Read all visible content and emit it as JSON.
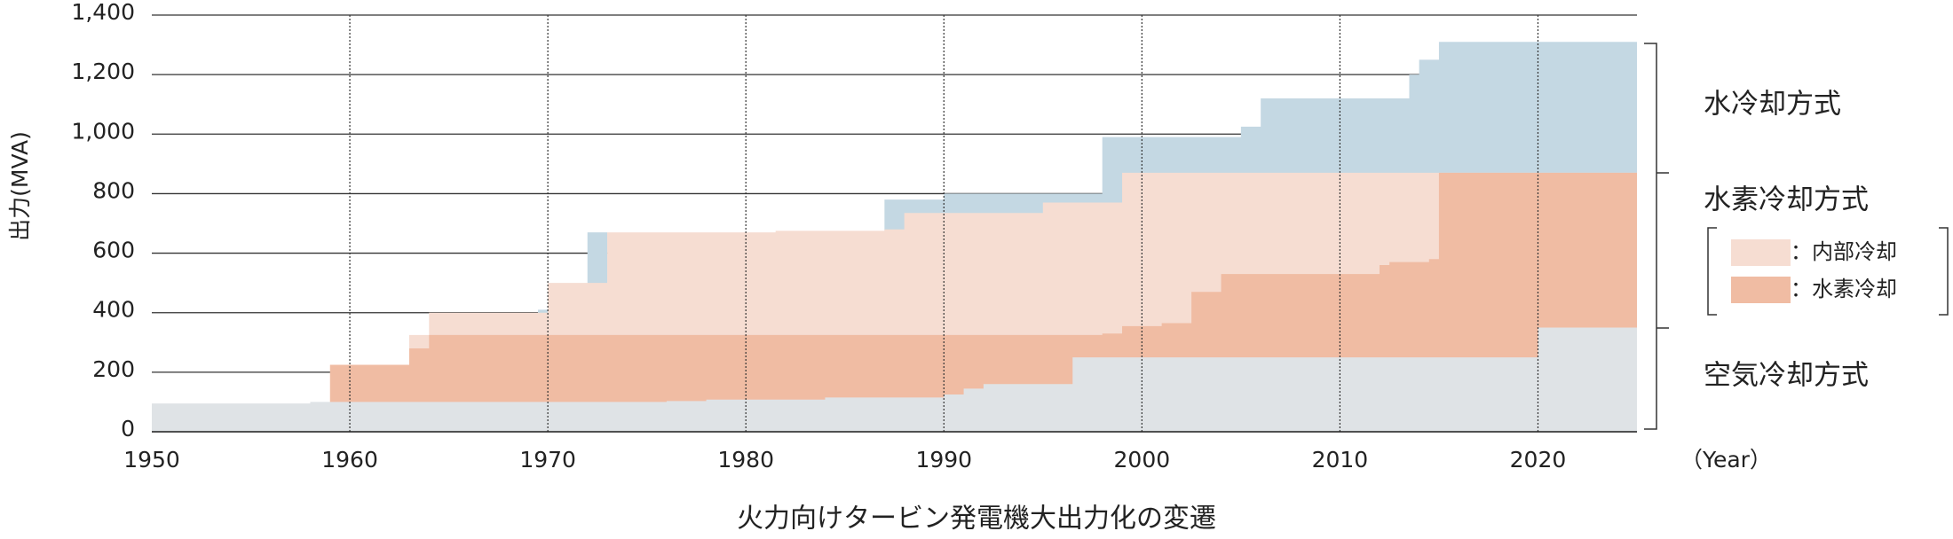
{
  "chart_data": {
    "type": "step-area",
    "title": "火力向けタービン発電機大出力化の変遷",
    "y_label": "出力(MVA)",
    "x_unit": "（Year）",
    "group_label": "水素冷却方式",
    "xlim": [
      1950,
      2025
    ],
    "xticks": [
      1950,
      1960,
      1970,
      1980,
      1990,
      2000,
      2010,
      2020
    ],
    "ylim": [
      0,
      1400
    ],
    "yticks": [
      0,
      200,
      400,
      600,
      800,
      {
        "value": 1000,
        "label": "1,000"
      },
      {
        "value": 1200,
        "label": "1,200"
      },
      {
        "value": 1400,
        "label": "1,400"
      }
    ],
    "grid": true,
    "series": [
      {
        "name": "水冷却方式",
        "color": "#c4d8e3",
        "x": [
          1969.5,
          1972,
          1973,
          1987,
          1990,
          1998,
          2005,
          2006,
          2013.5,
          2014,
          2015
        ],
        "values": [
          410,
          670,
          0,
          780,
          800,
          990,
          1025,
          1120,
          1200,
          1250,
          1310
        ]
      },
      {
        "name": "：内部冷却",
        "color": "#f6ddd2",
        "x": [
          1963,
          1964,
          1970,
          1973,
          1981.5,
          1987,
          1988,
          1995,
          1999
        ],
        "values": [
          325,
          400,
          500,
          670,
          675,
          680,
          735,
          770,
          870
        ]
      },
      {
        "name": "：水素冷却",
        "color": "#f0bca3",
        "x": [
          1959,
          1963,
          1964,
          1998,
          1999,
          2001,
          2002.5,
          2004,
          2012,
          2012.5,
          2014.5,
          2015
        ],
        "values": [
          225,
          280,
          325,
          330,
          355,
          365,
          470,
          530,
          560,
          570,
          580,
          870
        ]
      },
      {
        "name": "空気冷却方式",
        "color": "#dfe3e6",
        "x": [
          1950,
          1958,
          1976,
          1978,
          1984,
          1990,
          1991,
          1992,
          1996.5,
          2020
        ],
        "values": [
          95,
          100,
          103,
          108,
          115,
          125,
          145,
          160,
          250,
          350
        ]
      }
    ]
  }
}
